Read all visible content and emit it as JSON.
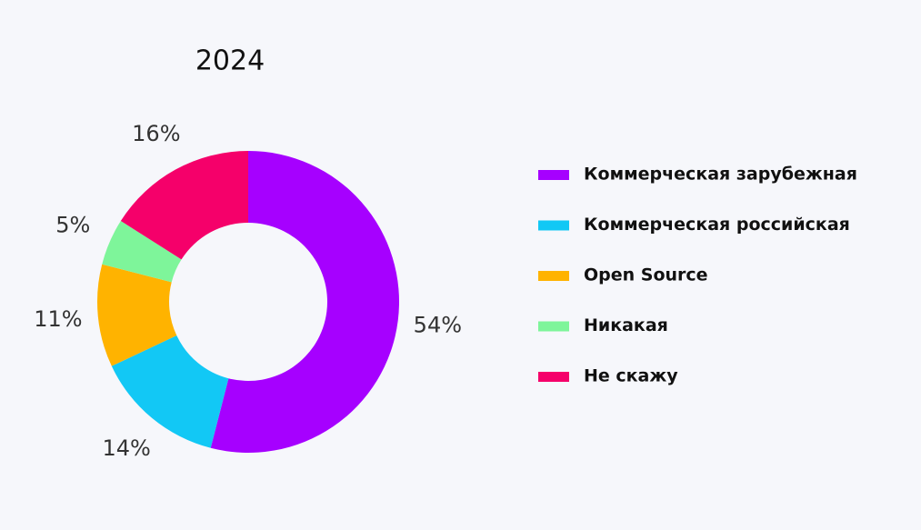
{
  "chart_data": {
    "type": "donut",
    "title": "2024",
    "categories": [
      "Коммерческая зарубежная",
      "Коммерческая российская",
      "Open Source",
      "Никакая",
      "Не скажу"
    ],
    "values": [
      54,
      14,
      11,
      5,
      16
    ],
    "value_labels": [
      "54%",
      "14%",
      "11%",
      "5%",
      "16%"
    ],
    "colors": [
      "#a600ff",
      "#12c8f5",
      "#ffb300",
      "#7ef59a",
      "#f5006a"
    ],
    "legend": "right"
  }
}
